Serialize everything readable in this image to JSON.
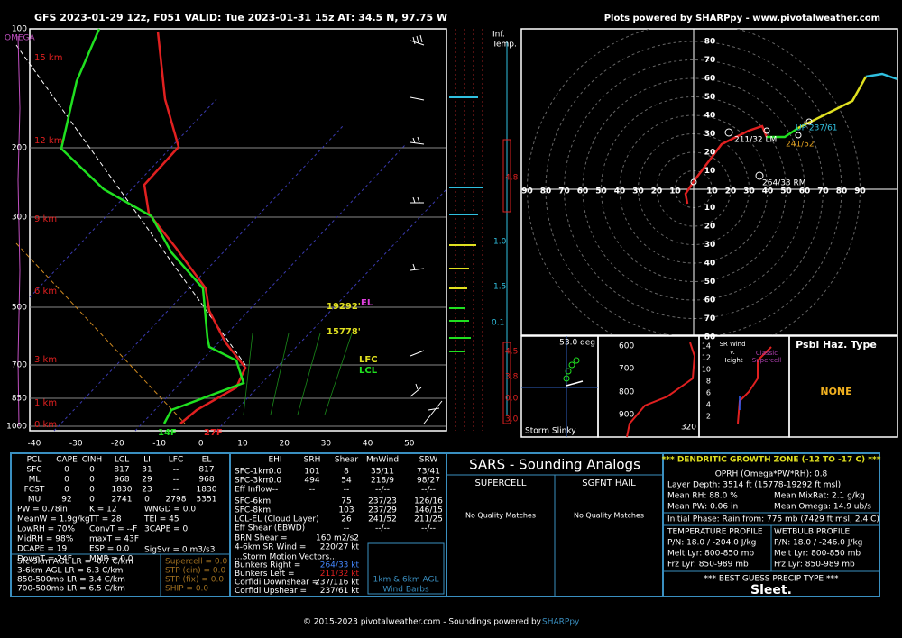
{
  "header": {
    "title": "GFS 2023-01-29 12z, F051  VALID: Tue 2023-01-31 15z  AT: 34.5 N, 97.75 W",
    "credit": "Plots powered by SHARPpy - www.pivotalweather.com"
  },
  "skewt": {
    "pressure_labels": [
      "100",
      "200",
      "300",
      "500",
      "700",
      "850",
      "1000"
    ],
    "omega_label": "OMEGA",
    "height_labels": [
      "15 km",
      "12 km",
      "9 km",
      "6 km",
      "3 km",
      "1 km",
      "0 km"
    ],
    "temp_labels": [
      "-40",
      "-30",
      "-20",
      "-10",
      "0",
      "10",
      "20",
      "30",
      "40",
      "50"
    ],
    "sfc_dewpoint": "14F",
    "sfc_temp": "27F",
    "el_height": "19292'",
    "el": "EL",
    "lfc_height": "15778'",
    "lfc": "LFC",
    "lcl": "LCL"
  },
  "inferred_temp": {
    "title": [
      "Inf.",
      "Temp."
    ],
    "values": [
      "4.8",
      "1.0",
      "1.5",
      "0.1",
      "4.5",
      "3.8",
      "0.0",
      "3.0"
    ]
  },
  "hodograph": {
    "rings": [
      "10",
      "20",
      "30",
      "40",
      "50",
      "60",
      "70",
      "80",
      "90"
    ],
    "annotations": [
      "211/32 LM",
      "UP 237/61",
      "241/52",
      "264/33 RM"
    ]
  },
  "slinky": {
    "angle": "53.0 deg",
    "label": "Storm Slinky"
  },
  "profile_panel": {
    "pressure_labels": [
      "600",
      "700",
      "800",
      "900"
    ],
    "value": "320"
  },
  "sr_panel": {
    "height_labels": [
      "14",
      "12",
      "10",
      "8",
      "6",
      "4",
      "2"
    ],
    "title": [
      "SR Wind",
      "v.",
      "Height"
    ],
    "note": [
      "Classic",
      "Supercell"
    ]
  },
  "hazard": {
    "title": "Psbl Haz. Type",
    "value": "NONE"
  },
  "parcels": {
    "headers": [
      "PCL",
      "CAPE",
      "CINH",
      "LCL",
      "LI",
      "LFC",
      "EL"
    ],
    "rows": [
      [
        "SFC",
        "0",
        "0",
        "817",
        "31",
        "--",
        "817"
      ],
      [
        "ML",
        "0",
        "0",
        "968",
        "29",
        "--",
        "968"
      ],
      [
        "FCST",
        "0",
        "0",
        "1830",
        "23",
        "--",
        "1830"
      ],
      [
        "MU",
        "92",
        "0",
        "2741",
        "0",
        "2798",
        "5351"
      ]
    ]
  },
  "indices": {
    "col1": [
      "PW = 0.78in",
      "MeanW = 1.9g/kg",
      "LowRH = 70%",
      "MidRH = 98%",
      "DCAPE = 19",
      "DownT = 24F"
    ],
    "col2": [
      "K = 12",
      "TT = 28",
      "ConvT = --F",
      "maxT = 43F",
      "ESP = 0.0",
      "MMP = 0.0"
    ],
    "col3": [
      "WNGD = 0.0",
      "TEI = 45",
      "3CAPE = 0"
    ],
    "sigsvr": "SigSvr = 0 m3/s3"
  },
  "lapse_rates": [
    "Sfc-3km AGL LR = -0.7 C/km",
    "3-6km AGL LR = 6.3 C/km",
    "850-500mb LR = 3.4 C/km",
    "700-500mb LR = 6.5 C/km"
  ],
  "composites": [
    "Supercell = 0.0",
    "STP (cin) = 0.0",
    "STP (fix) = 0.0",
    "SHIP = 0.0"
  ],
  "kinematics": {
    "headers": [
      "EHI",
      "SRH",
      "Shear",
      "MnWind",
      "SRW"
    ],
    "rows": [
      [
        "SFC-1km",
        "0.0",
        "101",
        "8",
        "35/11",
        "73/41"
      ],
      [
        "SFC-3km",
        "0.0",
        "494",
        "54",
        "218/9",
        "98/27"
      ],
      [
        "Eff Inflow",
        "--",
        "--",
        "--",
        "--/--",
        "--/--"
      ],
      [
        "SFC-6km",
        "75",
        "237/23",
        "126/16"
      ],
      [
        "SFC-8km",
        "103",
        "237/29",
        "146/15"
      ],
      [
        "LCL-EL (Cloud Layer)",
        "26",
        "241/52",
        "211/25"
      ],
      [
        "Eff Shear (EBWD)",
        "--",
        "--/--",
        "--/--"
      ]
    ],
    "params": [
      [
        "BRN Shear =",
        "160 m2/s2"
      ],
      [
        "4-6km SR Wind =",
        "220/27 kt"
      ]
    ],
    "motion_title": "...Storm Motion Vectors...",
    "motions": [
      [
        "Bunkers Right =",
        "264/33 kt"
      ],
      [
        "Bunkers Left =",
        "211/32 kt"
      ],
      [
        "Corfidi Downshear =",
        "237/116 kt"
      ],
      [
        "Corfidi Upshear =",
        "237/61 kt"
      ]
    ],
    "barb_box": [
      "1km & 6km AGL",
      "Wind Barbs"
    ]
  },
  "sars": {
    "title": "SARS - Sounding Analogs",
    "supercell": "SUPERCELL",
    "hail": "SGFNT HAIL",
    "supercell_result": "No Quality Matches",
    "hail_result": "No Quality Matches"
  },
  "dgz": {
    "title": "*** DENDRITIC GROWTH ZONE (-12 TO -17 C) ***",
    "oprh": "OPRH (Omega*PW*RH): 0.8",
    "depth": "Layer Depth: 3514 ft (15778-19292 ft msl)",
    "mean_rh": "Mean RH: 88.0 %",
    "mean_mixrat": "Mean MixRat: 2.1 g/kg",
    "mean_pw": "Mean PW: 0.06 in",
    "mean_omega": "Mean Omega: 14.9 ub/s",
    "initial_phase": "Initial Phase: Rain from: 775 mb (7429 ft msl; 2.4 C)",
    "temp_profile": [
      "TEMPERATURE PROFILE",
      "P/N: 18.0 / -204.0 J/kg",
      "Melt Lyr: 800-850 mb",
      "Frz Lyr: 850-989 mb"
    ],
    "wetbulb_profile": [
      "WETBULB PROFILE",
      "P/N: 18.0 / -246.0 J/kg",
      "Melt Lyr: 800-850 mb",
      "Frz Lyr: 850-989 mb"
    ],
    "precip_title": "*** BEST GUESS PRECIP TYPE ***",
    "precip": "Sleet."
  },
  "footer": {
    "text": "© 2015-2023 pivotalweather.com - Soundings powered by ",
    "link": "SHARPpy"
  }
}
